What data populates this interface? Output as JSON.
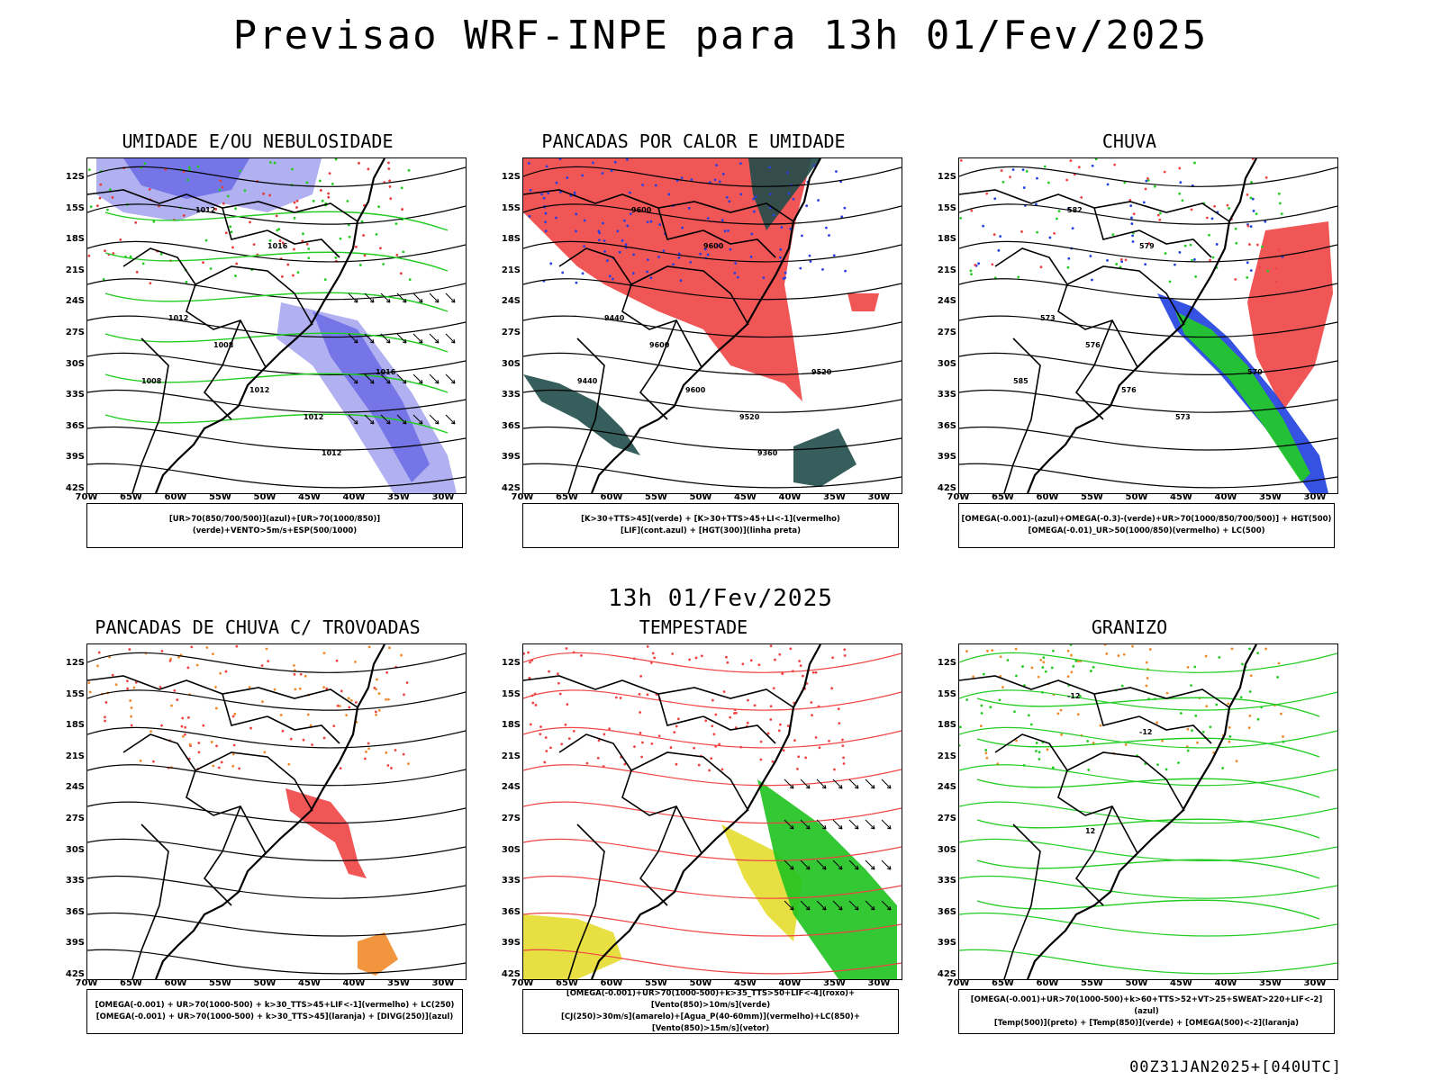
{
  "title": "Previsao WRF-INPE  para 13h 01/Fev/2025",
  "mid_title": "13h 01/Fev/2025",
  "footer": "00Z31JAN2025+[040UTC]",
  "axes": {
    "lat_labels": [
      "12S",
      "15S",
      "18S",
      "21S",
      "24S",
      "27S",
      "30S",
      "33S",
      "36S",
      "39S",
      "42S"
    ],
    "lon_labels": [
      "70W",
      "65W",
      "60W",
      "55W",
      "50W",
      "45W",
      "40W",
      "35W",
      "30W"
    ]
  },
  "panels": [
    {
      "title": "UMIDADE E/OU NEBULOSIDADE",
      "legend": [
        "[UR>70(850/700/500)](azul)+[UR>70(1000/850)](verde)+VENTO>5m/s+ESP(500/1000)"
      ],
      "contour_labels": [
        "1012",
        "1016",
        "1008",
        "1012",
        "1012",
        "1016",
        "1012",
        "1008",
        "1012"
      ],
      "colors": {
        "blue": "#6f6fe6",
        "light_blue": "#a8a8f0",
        "green": "#22cc22",
        "red": "#e83a3a",
        "line": "#000000"
      }
    },
    {
      "title": "PANCADAS POR CALOR E UMIDADE",
      "legend": [
        "[K>30+TTS>45](verde) + [K>30+TTS>45+LI<-1](vermelho)",
        "[LIF](cont.azul) + [HGT(300)](linha preta)"
      ],
      "contour_labels": [
        "9600",
        "9600",
        "9600",
        "9600",
        "9520",
        "9520",
        "9440",
        "9440",
        "9360"
      ],
      "colors": {
        "red": "#f04444",
        "dark_green": "#1f4d4a",
        "blue": "#2a3fe0",
        "line": "#000000"
      }
    },
    {
      "title": "CHUVA",
      "legend": [
        "[OMEGA(-0.001)-(azul)+OMEGA(-0.3)-(verde)+UR>70(1000/850/700/500)] + HGT(500)",
        "[OMEGA(-0.01)_UR>50(1000/850)(vermelho) + LC(500)"
      ],
      "contour_labels": [
        "582",
        "579",
        "576",
        "576",
        "573",
        "570",
        "573",
        "585"
      ],
      "colors": {
        "red": "#f04444",
        "blue": "#1f3fe0",
        "green": "#22cc22",
        "line": "#000000"
      }
    },
    {
      "title": "PANCADAS DE CHUVA C/ TROVOADAS",
      "legend": [
        "[OMEGA(-0.001) + UR>70(1000-500) + k>30_TTS>45+LIF<-1](vermelho) + LC(250)",
        "[OMEGA(-0.001) + UR>70(1000-500) + k>30_TTS>45](laranja) + [DIVG(250)](azul)"
      ],
      "contour_labels": [],
      "colors": {
        "red": "#f04444",
        "orange": "#f08a2a",
        "blue": "#2a3fe0",
        "line": "#000000"
      }
    },
    {
      "title": "TEMPESTADE",
      "legend": [
        "[OMEGA(-0.001)+UR>70(1000-500)+k>35_TTS>50+LIF<-4](roxo)+[Vento(850)>10m/s](verde)",
        "[CJ(250)>30m/s](amarelo)+[Agua_P(40-60mm)](vermelho)+LC(850)+[Vento(850)>15m/s](vetor)"
      ],
      "contour_labels": [],
      "colors": {
        "yellow": "#e6dc2e",
        "green": "#1fc21f",
        "red": "#f04444",
        "line": "#000000"
      }
    },
    {
      "title": "GRANIZO",
      "legend": [
        "[OMEGA(-0.001)+UR>70(1000-500)+k>60+TTS>52+VT>25+SWEAT>220+LIF<-2](azul)",
        "[Temp(500)](preto) + [Temp(850)](verde) + [OMEGA(500)<-2](laranja)"
      ],
      "contour_labels": [
        "-12",
        "-12",
        "12"
      ],
      "colors": {
        "green": "#22cc22",
        "orange": "#f08a2a",
        "line": "#000000"
      }
    }
  ]
}
